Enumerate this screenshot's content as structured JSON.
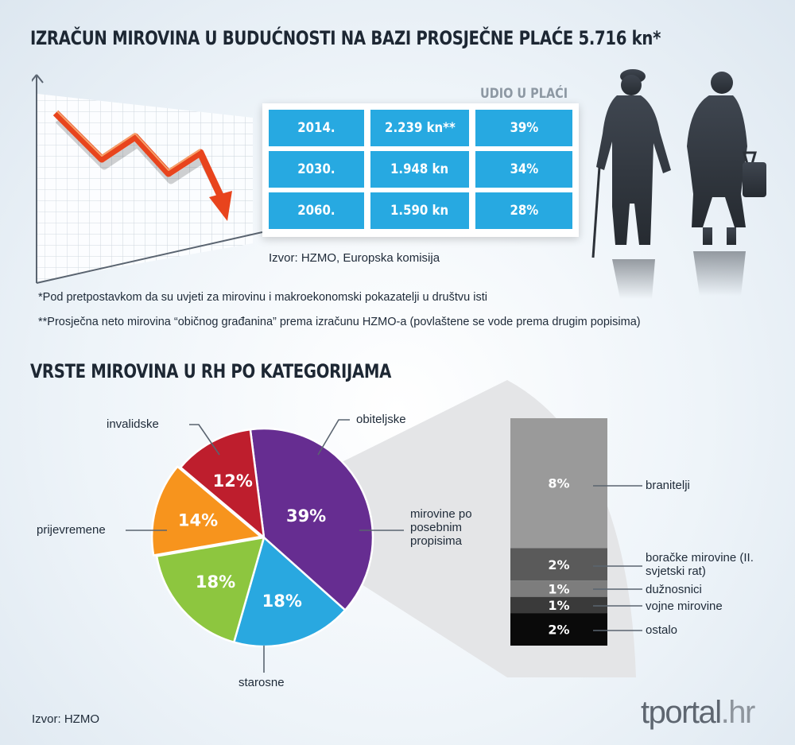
{
  "header": {
    "title": "IZRAČUN MIROVINA U BUDUĆNOSTI NA BAZI PROSJEČNE PLAĆE 5.716 kn*"
  },
  "pension_table": {
    "column_header": "UDIO U PLAĆI",
    "rows": [
      {
        "year": "2014.",
        "amount": "2.239 kn**",
        "share": "39%"
      },
      {
        "year": "2030.",
        "amount": "1.948 kn",
        "share": "34%"
      },
      {
        "year": "2060.",
        "amount": "1.590 kn",
        "share": "28%"
      }
    ],
    "source": "Izvor: HZMO, Europska komisija"
  },
  "footnotes": [
    "*Pod pretpostavkom da su uvjeti za mirovinu i makroekonomski pokazatelji u društvu isti",
    "**Prosječna neto mirovina “običnog građanina” prema izračunu HZMO-a (povlaštene se vode prema drugim popisima)"
  ],
  "section2": {
    "title": "VRSTE MIROVINA U RH PO KATEGORIJAMA",
    "source": "Izvor: HZMO"
  },
  "brand": {
    "name": "tportal",
    "tld": ".hr"
  },
  "colors": {
    "table_blue": "#27a9e1",
    "invalidske": "#29a8e0",
    "obiteljske": "#8dc63f",
    "posebni": "#f7941d",
    "starosne": "#662d91",
    "prijevremene": "#be1e2d",
    "arrow": "#e8441d",
    "branitelji": "#9a9a9a",
    "boracke": "#5a5a5a",
    "duznosnici": "#7d7d7d",
    "vojne": "#3a3a3a",
    "ostalo": "#0a0a0a"
  },
  "chart_data": [
    {
      "type": "pie",
      "categories": [
        "starosne",
        "invalidske",
        "obiteljske",
        "mirovine po posebnim propisima",
        "prijevremene"
      ],
      "values": [
        39,
        18,
        18,
        14,
        12
      ],
      "value_labels": [
        "39%",
        "18%",
        "18%",
        "14%",
        "12%"
      ],
      "colors": [
        "#662d91",
        "#29a8e0",
        "#8dc63f",
        "#f7941d",
        "#be1e2d"
      ]
    },
    {
      "type": "bar",
      "stacked": true,
      "categories": [
        "branitelji",
        "boračke mirovine (II. svjetski rat)",
        "dužnosnici",
        "vojne mirovine",
        "ostalo"
      ],
      "values": [
        8,
        2,
        1,
        1,
        2
      ],
      "value_labels": [
        "8%",
        "2%",
        "1%",
        "1%",
        "2%"
      ],
      "colors": [
        "#9a9a9a",
        "#5a5a5a",
        "#7d7d7d",
        "#3a3a3a",
        "#0a0a0a"
      ]
    }
  ]
}
